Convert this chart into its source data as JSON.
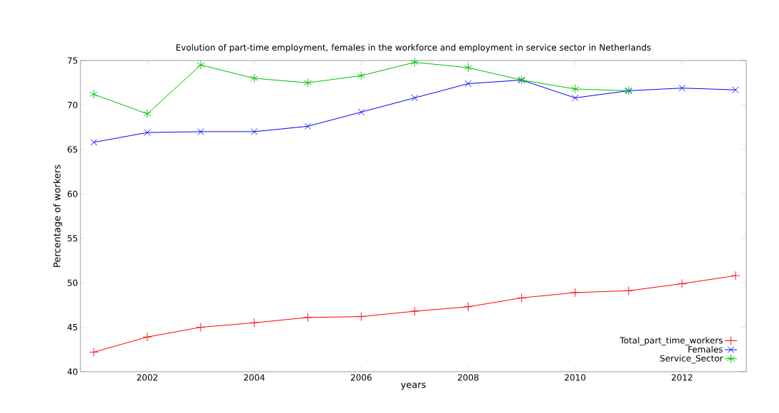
{
  "chart_data": {
    "type": "line",
    "title": "Evolution of part-time employment, females in the workforce and employment in service sector in Netherlands",
    "xlabel": "years",
    "ylabel": "Percentage of workers",
    "x": [
      2001,
      2002,
      2003,
      2004,
      2005,
      2006,
      2007,
      2008,
      2009,
      2010,
      2011,
      2012,
      2013
    ],
    "series": [
      {
        "name": "Total_part_time_workers",
        "color": "#ff0000",
        "marker": "plus",
        "values": [
          42.2,
          43.9,
          45.0,
          45.5,
          46.1,
          46.2,
          46.8,
          47.3,
          48.3,
          48.9,
          49.1,
          49.9,
          50.8
        ]
      },
      {
        "name": "Females",
        "color": "#0000ff",
        "marker": "cross",
        "values": [
          65.8,
          66.9,
          67.0,
          67.0,
          67.6,
          69.2,
          70.8,
          72.4,
          72.8,
          70.8,
          71.6,
          71.9,
          71.7
        ]
      },
      {
        "name": "Service_Sector",
        "color": "#00c000",
        "marker": "cross",
        "values": [
          71.2,
          69.0,
          74.5,
          73.0,
          72.5,
          73.3,
          74.8,
          74.2,
          72.8,
          71.8,
          71.6,
          null,
          null
        ]
      }
    ],
    "xlim": [
      2000.75,
      2013.2
    ],
    "ylim": [
      40,
      75
    ],
    "xticks": [
      2002,
      2004,
      2006,
      2008,
      2010,
      2012
    ],
    "yticks": [
      40,
      45,
      50,
      55,
      60,
      65,
      70,
      75
    ],
    "legend": "bottom right",
    "grid": false,
    "line_style": "solid"
  }
}
